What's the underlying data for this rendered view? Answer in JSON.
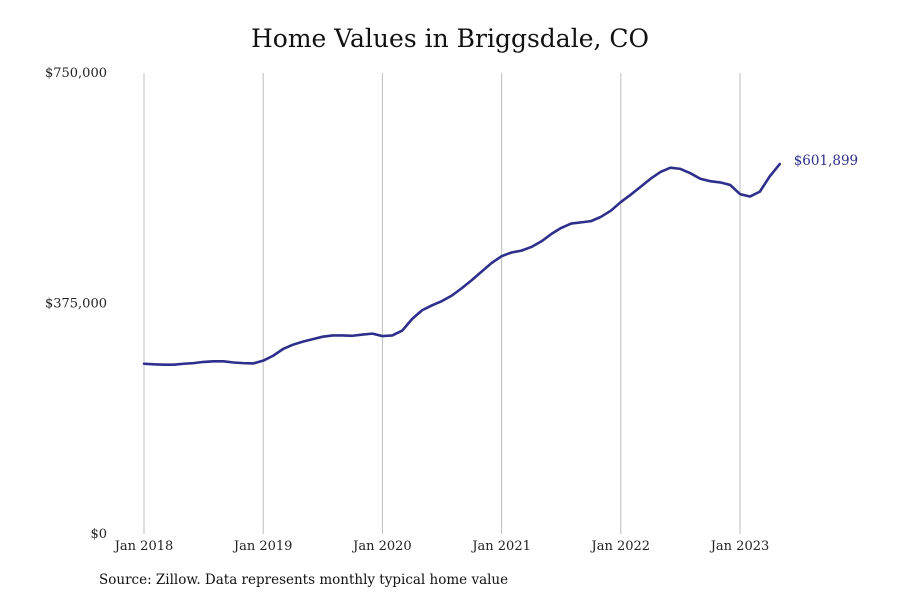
{
  "title": "Home Values in Briggsdale, CO",
  "source": "Source: Zillow. Data represents monthly typical home value",
  "colors": {
    "line": "#2e2e8c",
    "grid": "#bdbdbd"
  },
  "chart_data": {
    "type": "line",
    "title": "Home Values in Briggsdale, CO",
    "xlabel": "",
    "ylabel": "",
    "ylim": [
      0,
      750000
    ],
    "yticks": [
      0,
      375000,
      750000
    ],
    "ytick_labels": [
      "$0",
      "$375,000",
      "$750,000"
    ],
    "xticks": [
      "2018-01",
      "2019-01",
      "2020-01",
      "2021-01",
      "2022-01",
      "2023-01"
    ],
    "xtick_labels": [
      "Jan 2018",
      "Jan 2019",
      "Jan 2020",
      "Jan 2021",
      "Jan 2022",
      "Jan 2023"
    ],
    "grid": "vertical",
    "end_label": "$601,899",
    "series": [
      {
        "x": [
          "2018-01",
          "2018-02",
          "2018-03",
          "2018-04",
          "2018-05",
          "2018-06",
          "2018-07",
          "2018-08",
          "2018-09",
          "2018-10",
          "2018-11",
          "2018-12",
          "2019-01",
          "2019-02",
          "2019-03",
          "2019-04",
          "2019-05",
          "2019-06",
          "2019-07",
          "2019-08",
          "2019-09",
          "2019-10",
          "2019-11",
          "2019-12",
          "2020-01",
          "2020-02",
          "2020-03",
          "2020-04",
          "2020-05",
          "2020-06",
          "2020-07",
          "2020-08",
          "2020-09",
          "2020-10",
          "2020-11",
          "2020-12",
          "2021-01",
          "2021-02",
          "2021-03",
          "2021-04",
          "2021-05",
          "2021-06",
          "2021-07",
          "2021-08",
          "2021-09",
          "2021-10",
          "2021-11",
          "2021-12",
          "2022-01",
          "2022-02",
          "2022-03",
          "2022-04",
          "2022-05",
          "2022-06",
          "2022-07",
          "2022-08",
          "2022-09",
          "2022-10",
          "2022-11",
          "2022-12",
          "2023-01",
          "2023-02",
          "2023-03",
          "2023-04",
          "2023-05"
        ],
        "values": [
          277000,
          276000,
          275500,
          275500,
          277000,
          278000,
          280000,
          281000,
          281000,
          279000,
          278000,
          277500,
          282000,
          290000,
          301000,
          308000,
          313000,
          317000,
          321000,
          323000,
          323000,
          322500,
          324500,
          326000,
          322000,
          323000,
          331000,
          350000,
          364000,
          372000,
          379000,
          388000,
          400000,
          413000,
          427000,
          441000,
          452000,
          458000,
          461000,
          467000,
          476000,
          488000,
          498000,
          505000,
          507000,
          509000,
          516000,
          526000,
          540000,
          552000,
          565000,
          578000,
          589000,
          596000,
          594000,
          587000,
          578000,
          574000,
          572000,
          568000,
          553000,
          549000,
          557000,
          582000,
          601899
        ]
      }
    ]
  }
}
